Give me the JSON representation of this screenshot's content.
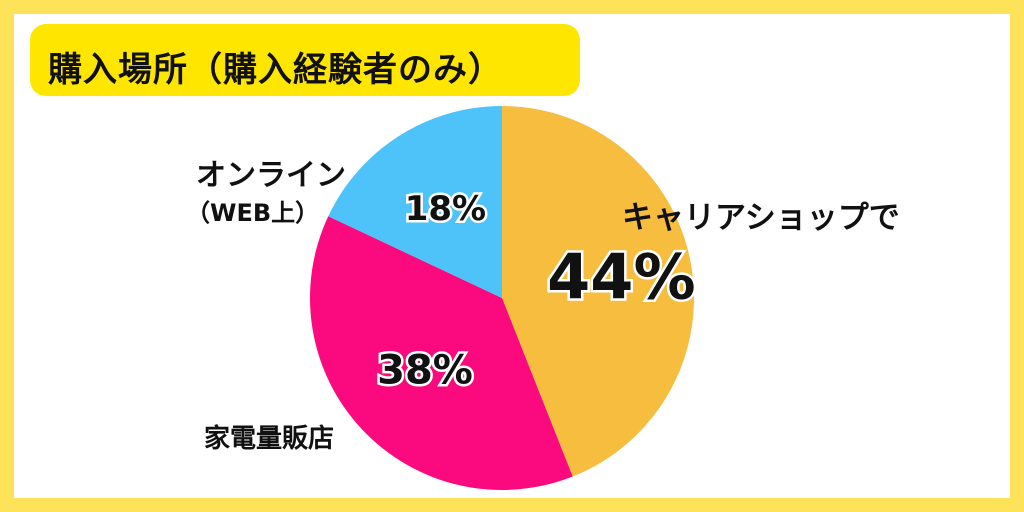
{
  "title": "購入場所（購入経験者のみ）",
  "colors": {
    "background_border": "#fde35a",
    "title_box": "#ffe600",
    "carrier_shop": "#f6bd3f",
    "electronics_store": "#fa0a7e",
    "online": "#4dc3f9"
  },
  "labels": {
    "online_line1": "オンライン",
    "online_line2": "（WEB上）",
    "electronics_store": "家電量販店",
    "carrier_shop": "キャリアショップで"
  },
  "chart_data": {
    "type": "pie",
    "title": "購入場所（購入経験者のみ）",
    "slices": [
      {
        "label": "キャリアショップで",
        "value": 44,
        "display": "44%",
        "color": "#f6bd3f"
      },
      {
        "label": "家電量販店",
        "value": 38,
        "display": "38%",
        "color": "#fa0a7e"
      },
      {
        "label": "オンライン（WEB上）",
        "value": 18,
        "display": "18%",
        "color": "#4dc3f9"
      }
    ],
    "start": "top, clockwise",
    "legend": "none"
  }
}
